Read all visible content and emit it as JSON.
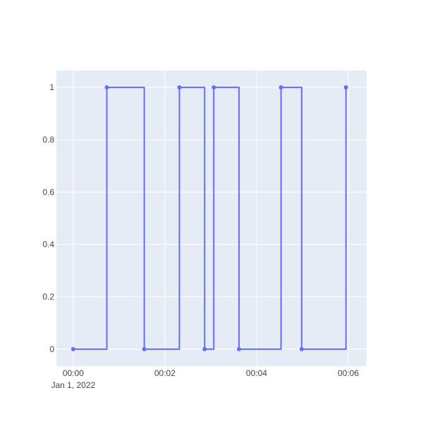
{
  "chart_data": {
    "type": "line",
    "line_shape": "step",
    "title": "",
    "xlabel": "",
    "ylabel": "",
    "x_axis_type": "date",
    "x_date_base_label": "Jan 1, 2022",
    "x_tick_labels": [
      "00:00",
      "00:02",
      "00:04",
      "00:06"
    ],
    "x_tick_values": [
      "00:00:00",
      "00:02:00",
      "00:04:00",
      "00:06:00"
    ],
    "xlim": [
      "2021-12-31 23:59:38",
      "2022-01-01 00:06:24"
    ],
    "y_tick_labels": [
      "0",
      "0.2",
      "0.4",
      "0.6",
      "0.8",
      "1"
    ],
    "y_tick_values": [
      0,
      0.2,
      0.4,
      0.6,
      0.8,
      1
    ],
    "ylim": [
      -0.065,
      1.065
    ],
    "grid": true,
    "legend": "none",
    "colors": {
      "line": "#636efa",
      "plot_bg": "#e5ecf6",
      "grid": "#ffffff",
      "paper_bg": "#ffffff",
      "tick_text": "#444444"
    },
    "series": [
      {
        "x": [
          "2022-01-01 00:00:00",
          "2022-01-01 00:00:44",
          "2022-01-01 00:01:33",
          "2022-01-01 00:02:19",
          "2022-01-01 00:02:52",
          "2022-01-01 00:03:04",
          "2022-01-01 00:03:37",
          "2022-01-01 00:04:32",
          "2022-01-01 00:04:59",
          "2022-01-01 00:05:57"
        ],
        "y": [
          0,
          1,
          0,
          1,
          0,
          1,
          0,
          1,
          0,
          1
        ]
      }
    ]
  }
}
